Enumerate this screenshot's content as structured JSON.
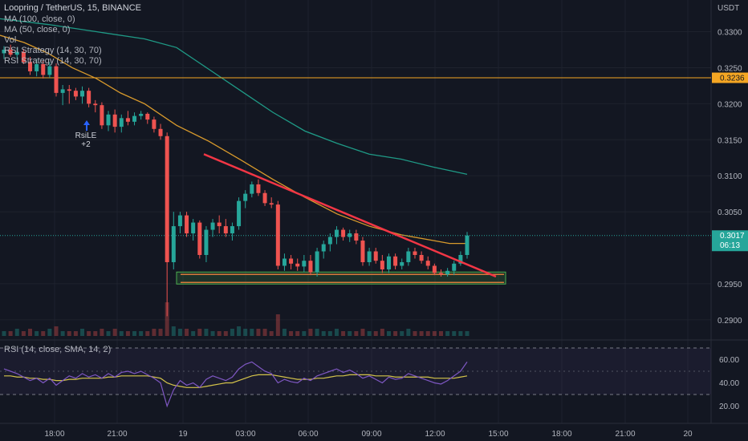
{
  "header": {
    "symbol_line": "Loopring / TetherUS, 15, BINANCE",
    "ma100": "MA (100, close, 0)",
    "ma50": "MA (50, close, 0)",
    "vol": "Vol",
    "rsi_strategy_1": "RSI Strategy (14, 30, 70)",
    "rsi_strategy_2": "RSI Strategy (14, 30, 70)"
  },
  "price_axis": {
    "currency": "USDT",
    "ticks": [
      "0.3300",
      "0.3250",
      "0.3200",
      "0.3150",
      "0.3100",
      "0.3050",
      "0.2950",
      "0.2900"
    ]
  },
  "time_axis": {
    "ticks": [
      "18:00",
      "21:00",
      "19",
      "03:00",
      "06:00",
      "09:00",
      "12:00",
      "15:00",
      "18:00",
      "21:00",
      "20"
    ]
  },
  "horizontal_line": {
    "value": 0.3236,
    "label": "0.3236",
    "color": "#f5a623"
  },
  "last_price": {
    "value": 0.3017,
    "label": "0.3017",
    "countdown": "06:13",
    "color": "#26a69a"
  },
  "signal": {
    "label": "RsiLE",
    "sub": "+2"
  },
  "rsi_panel": {
    "title": "RSI (14, close, SMA, 14, 2)",
    "ticks": [
      "60.00",
      "40.00",
      "20.00"
    ],
    "upper_band": 70,
    "lower_band": 30,
    "line_color": "#7e57c2",
    "sma_color": "#d4c34a"
  },
  "colors": {
    "up": "#26a69a",
    "down": "#ef5350",
    "ma100": "#d89a2c",
    "ma50": "#1f9a86",
    "trendline": "#f23645",
    "support_box": "#4caf50"
  },
  "chart_data": {
    "type": "candlestick",
    "y_range": [
      0.2872,
      0.3344
    ],
    "candles": [
      [
        0.327,
        0.328,
        0.3262,
        0.3275
      ],
      [
        0.3275,
        0.3282,
        0.3265,
        0.3268
      ],
      [
        0.3268,
        0.3278,
        0.3262,
        0.3272
      ],
      [
        0.3272,
        0.3276,
        0.3255,
        0.3258
      ],
      [
        0.3258,
        0.3265,
        0.324,
        0.3245
      ],
      [
        0.3245,
        0.3262,
        0.3238,
        0.3255
      ],
      [
        0.3255,
        0.326,
        0.3235,
        0.324
      ],
      [
        0.324,
        0.3258,
        0.3236,
        0.3252
      ],
      [
        0.3252,
        0.3256,
        0.321,
        0.3215
      ],
      [
        0.3215,
        0.3226,
        0.3198,
        0.322
      ],
      [
        0.322,
        0.3226,
        0.32,
        0.3218
      ],
      [
        0.3218,
        0.3222,
        0.3205,
        0.321
      ],
      [
        0.321,
        0.3224,
        0.32,
        0.3218
      ],
      [
        0.3218,
        0.3222,
        0.3195,
        0.32
      ],
      [
        0.32,
        0.3205,
        0.3188,
        0.3198
      ],
      [
        0.3198,
        0.3202,
        0.3165,
        0.317
      ],
      [
        0.317,
        0.319,
        0.3162,
        0.3185
      ],
      [
        0.3185,
        0.3192,
        0.316,
        0.3168
      ],
      [
        0.3168,
        0.3185,
        0.316,
        0.318
      ],
      [
        0.318,
        0.319,
        0.317,
        0.3175
      ],
      [
        0.3175,
        0.3188,
        0.317,
        0.3183
      ],
      [
        0.3183,
        0.319,
        0.3178,
        0.3186
      ],
      [
        0.3186,
        0.3188,
        0.3172,
        0.3178
      ],
      [
        0.3178,
        0.3182,
        0.316,
        0.3165
      ],
      [
        0.3165,
        0.3172,
        0.315,
        0.3155
      ],
      [
        0.3155,
        0.316,
        0.2905,
        0.298
      ],
      [
        0.298,
        0.305,
        0.297,
        0.303
      ],
      [
        0.303,
        0.305,
        0.302,
        0.3045
      ],
      [
        0.3045,
        0.305,
        0.3015,
        0.302
      ],
      [
        0.302,
        0.304,
        0.301,
        0.3035
      ],
      [
        0.3035,
        0.3038,
        0.2985,
        0.299
      ],
      [
        0.299,
        0.303,
        0.298,
        0.3025
      ],
      [
        0.3025,
        0.304,
        0.3015,
        0.3035
      ],
      [
        0.3035,
        0.3045,
        0.302,
        0.303
      ],
      [
        0.303,
        0.304,
        0.3015,
        0.302
      ],
      [
        0.302,
        0.3035,
        0.301,
        0.303
      ],
      [
        0.303,
        0.307,
        0.3025,
        0.3065
      ],
      [
        0.3065,
        0.308,
        0.3055,
        0.3075
      ],
      [
        0.3075,
        0.3092,
        0.307,
        0.3088
      ],
      [
        0.3088,
        0.3095,
        0.3072,
        0.3076
      ],
      [
        0.3076,
        0.308,
        0.3058,
        0.3062
      ],
      [
        0.3062,
        0.307,
        0.3055,
        0.306
      ],
      [
        0.306,
        0.3065,
        0.297,
        0.2975
      ],
      [
        0.2975,
        0.2992,
        0.2968,
        0.2985
      ],
      [
        0.2985,
        0.299,
        0.297,
        0.2978
      ],
      [
        0.2978,
        0.2985,
        0.2968,
        0.2974
      ],
      [
        0.2974,
        0.299,
        0.2966,
        0.2982
      ],
      [
        0.2982,
        0.299,
        0.2962,
        0.2966
      ],
      [
        0.2966,
        0.3,
        0.296,
        0.2995
      ],
      [
        0.2995,
        0.301,
        0.2985,
        0.3005
      ],
      [
        0.3005,
        0.302,
        0.2995,
        0.3015
      ],
      [
        0.3015,
        0.303,
        0.3005,
        0.3025
      ],
      [
        0.3025,
        0.3028,
        0.301,
        0.3015
      ],
      [
        0.3015,
        0.3025,
        0.3008,
        0.302
      ],
      [
        0.302,
        0.3025,
        0.3005,
        0.301
      ],
      [
        0.301,
        0.3015,
        0.2975,
        0.298
      ],
      [
        0.298,
        0.3,
        0.2975,
        0.2995
      ],
      [
        0.2995,
        0.3,
        0.2978,
        0.2982
      ],
      [
        0.2982,
        0.299,
        0.2965,
        0.297
      ],
      [
        0.297,
        0.2992,
        0.2965,
        0.2988
      ],
      [
        0.2988,
        0.2992,
        0.297,
        0.2975
      ],
      [
        0.2975,
        0.2985,
        0.297,
        0.298
      ],
      [
        0.298,
        0.3,
        0.2975,
        0.2995
      ],
      [
        0.2995,
        0.3,
        0.2985,
        0.299
      ],
      [
        0.299,
        0.2995,
        0.2978,
        0.2982
      ],
      [
        0.2982,
        0.2988,
        0.297,
        0.2975
      ],
      [
        0.2975,
        0.2978,
        0.2962,
        0.2965
      ],
      [
        0.2965,
        0.297,
        0.296,
        0.2963
      ],
      [
        0.2963,
        0.2972,
        0.296,
        0.2968
      ],
      [
        0.2968,
        0.2982,
        0.2962,
        0.2978
      ],
      [
        0.2978,
        0.2995,
        0.2975,
        0.299
      ],
      [
        0.299,
        0.3022,
        0.2985,
        0.3017
      ]
    ],
    "ma100": [
      [
        0,
        0.3295
      ],
      [
        30,
        0.3285
      ],
      [
        60,
        0.327
      ],
      [
        90,
        0.325
      ],
      [
        120,
        0.3235
      ],
      [
        150,
        0.3215
      ],
      [
        180,
        0.32
      ],
      [
        220,
        0.317
      ],
      [
        260,
        0.3148
      ],
      [
        300,
        0.3122
      ],
      [
        340,
        0.3095
      ],
      [
        380,
        0.307
      ],
      [
        420,
        0.3047
      ],
      [
        460,
        0.303
      ],
      [
        500,
        0.3018
      ],
      [
        540,
        0.301
      ],
      [
        560,
        0.3006
      ],
      [
        582,
        0.3006
      ]
    ],
    "ma50": [
      [
        0,
        0.3318
      ],
      [
        60,
        0.331
      ],
      [
        120,
        0.33
      ],
      [
        180,
        0.329
      ],
      [
        220,
        0.3278
      ],
      [
        260,
        0.3248
      ],
      [
        300,
        0.3218
      ],
      [
        340,
        0.3188
      ],
      [
        380,
        0.3162
      ],
      [
        420,
        0.3145
      ],
      [
        460,
        0.313
      ],
      [
        500,
        0.3123
      ],
      [
        540,
        0.3112
      ],
      [
        582,
        0.3102
      ]
    ],
    "rsi": [
      52,
      50,
      48,
      45,
      42,
      44,
      40,
      44,
      38,
      42,
      46,
      44,
      48,
      45,
      47,
      44,
      48,
      45,
      49,
      50,
      48,
      50,
      47,
      44,
      40,
      20,
      34,
      42,
      38,
      40,
      36,
      43,
      46,
      44,
      42,
      45,
      52,
      56,
      58,
      54,
      50,
      48,
      40,
      43,
      41,
      40,
      44,
      42,
      46,
      48,
      50,
      52,
      49,
      51,
      48,
      44,
      46,
      43,
      40,
      45,
      43,
      44,
      48,
      46,
      44,
      42,
      40,
      39,
      42,
      46,
      50,
      58
    ],
    "rsi_sma": [
      46,
      46,
      45,
      45,
      44,
      44,
      43,
      43,
      42,
      42,
      43,
      43,
      44,
      44,
      44,
      44,
      45,
      45,
      46,
      46,
      46,
      46,
      46,
      45,
      44,
      40,
      38,
      37,
      36,
      36,
      36,
      37,
      38,
      39,
      40,
      40,
      42,
      44,
      46,
      47,
      47,
      47,
      46,
      45,
      44,
      43,
      43,
      43,
      44,
      44,
      45,
      46,
      46,
      47,
      47,
      47,
      47,
      46,
      46,
      46,
      45,
      45,
      45,
      45,
      45,
      45,
      44,
      44,
      44,
      44,
      45,
      46
    ],
    "volume": [
      2,
      2,
      3,
      2,
      3,
      2,
      2,
      3,
      4,
      2,
      2,
      2,
      3,
      2,
      2,
      3,
      2,
      3,
      2,
      2,
      2,
      2,
      2,
      3,
      3,
      14,
      4,
      3,
      3,
      2,
      3,
      3,
      2,
      2,
      2,
      3,
      4,
      3,
      3,
      3,
      3,
      2,
      9,
      3,
      2,
      2,
      2,
      3,
      3,
      2,
      2,
      3,
      2,
      2,
      2,
      3,
      2,
      2,
      3,
      2,
      2,
      2,
      3,
      2,
      2,
      2,
      2,
      2,
      2,
      2,
      2,
      2
    ],
    "trendline": [
      [
        0.313,
        0.296
      ]
    ],
    "support_zone": [
      0.2953,
      0.2963
    ]
  }
}
